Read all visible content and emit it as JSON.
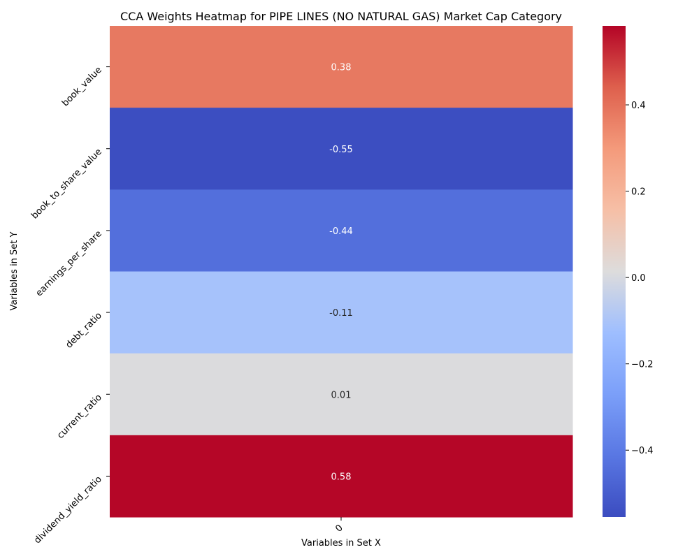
{
  "chart_data": {
    "type": "heatmap",
    "title": "CCA Weights Heatmap for PIPE LINES (NO NATURAL GAS) Market Cap Category",
    "xlabel": "Variables in Set X",
    "ylabel": "Variables in Set Y",
    "x_categories": [
      "0"
    ],
    "y_categories": [
      "book_value",
      "book_to_share_value",
      "earnings_per_share",
      "debt_ratio",
      "current_ratio",
      "dividend_yield_ratio"
    ],
    "values": [
      [
        0.38
      ],
      [
        -0.55
      ],
      [
        -0.44
      ],
      [
        -0.11
      ],
      [
        0.01
      ],
      [
        0.58
      ]
    ],
    "annotations": [
      [
        "0.38"
      ],
      [
        "-0.55"
      ],
      [
        "-0.44"
      ],
      [
        "-0.11"
      ],
      [
        "0.01"
      ],
      [
        "0.58"
      ]
    ],
    "colormap": "coolwarm",
    "vmin": -0.555,
    "vmax": 0.583,
    "colorbar_ticks": [
      {
        "value": 0.4,
        "label": "0.4"
      },
      {
        "value": 0.2,
        "label": "0.2"
      },
      {
        "value": 0.0,
        "label": "0.0"
      },
      {
        "value": -0.2,
        "label": "−0.2"
      },
      {
        "value": -0.4,
        "label": "−0.4"
      }
    ]
  }
}
